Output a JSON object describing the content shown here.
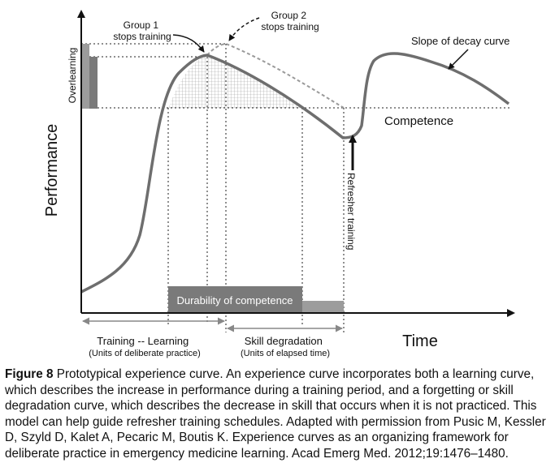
{
  "diagram": {
    "y_axis_label": "Performance",
    "x_axis_label": "Time",
    "overlearning_label": "Overlearning",
    "competence_label": "Competence",
    "group1_label": [
      "Group 1",
      "stops training"
    ],
    "group2_label": [
      "Group 2",
      "stops training"
    ],
    "decay_slope_label": "Slope of decay curve",
    "refresher_label": "Refresher training",
    "durability_label": "Durability of competence",
    "training_label": [
      "Training -- Learning",
      "(Units of deliberate practice)"
    ],
    "degradation_label": [
      "Skill degradation",
      "(Units of elapsed time)"
    ],
    "colors": {
      "curve": "#6e6e6e",
      "dashed_curve": "#9a9a9a",
      "bar": "#7a7a7a",
      "bar_light": "#9c9c9c",
      "axis": "#111111"
    }
  },
  "caption": {
    "label": "Figure 8",
    "text": " Prototypical experience curve. An experience curve incorporates both a learning curve, which describes the increase in performance during a training period, and a forgetting or skill degradation curve, which describes the decrease in skill that occurs when it is not practiced. This model can help guide refresher training schedules. Adapted with permission from Pusic M, Kessler D, Szyld D, Kalet A, Pecaric M, Boutis K. Experience curves as an organizing framework for deliberate practice in emergency medicine learning. Acad Emerg Med. 2012;19:1476–1480."
  }
}
